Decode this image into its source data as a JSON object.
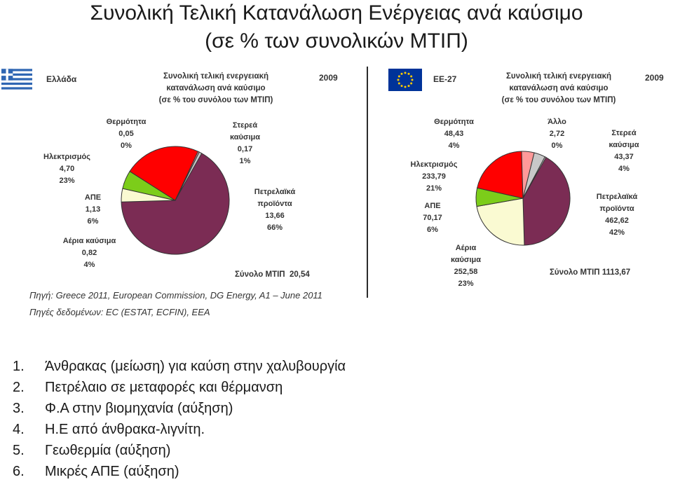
{
  "title": {
    "line1": "Συνολική Τελική Κατανάλωση Ενέργειας ανά καύσιμο",
    "line2": "(σε % των συνολικών ΜΤΙΠ)"
  },
  "left_panel": {
    "country": "Ελλάδα",
    "year": "2009",
    "chart_title": [
      "Συνολική τελική ενεργειακή",
      "κατανάλωση ανά καύσιμο",
      "(σε % του συνόλου των ΜΤΙΠ)"
    ],
    "total_label": "Σύνολο ΜΤΙΠ",
    "total_value": "20,54",
    "labels": {
      "heat": [
        "Θερμότητα",
        "0,05",
        "0%"
      ],
      "solid": [
        "Στερεά",
        "καύσιμα",
        "0,17",
        "1%"
      ],
      "electricity": [
        "Ηλεκτρισμός",
        "4,70",
        "23%"
      ],
      "res": [
        "ΑΠΕ",
        "1,13",
        "6%"
      ],
      "gas": [
        "Αέρια καύσιμα",
        "0,82",
        "4%"
      ],
      "oil": [
        "Πετρελαϊκά",
        "προϊόντα",
        "13,66",
        "66%"
      ]
    }
  },
  "right_panel": {
    "country": "ΕΕ-27",
    "year": "2009",
    "chart_title": [
      "Συνολική τελική ενεργειακή",
      "κατανάλωση ανά καύσιμο",
      "(σε % του συνόλου των ΜΤΙΠ)"
    ],
    "total_label": "Σύνολο ΜΤΙΠ",
    "total_value": "1113,67",
    "labels": {
      "heat": [
        "Θερμότητα",
        "48,43",
        "4%"
      ],
      "other": [
        "Άλλο",
        "2,72",
        "0%"
      ],
      "solid": [
        "Στερεά",
        "καύσιμα",
        "43,37",
        "4%"
      ],
      "electricity": [
        "Ηλεκτρισμός",
        "233,79",
        "21%"
      ],
      "res": [
        "ΑΠΕ",
        "70,17",
        "6%"
      ],
      "gas": [
        "Αέρια",
        "καύσιμα",
        "252,58",
        "23%"
      ],
      "oil": [
        "Πετρελαϊκά",
        "προϊόντα",
        "462,62",
        "42%"
      ]
    }
  },
  "source": {
    "line1": "Πηγή: Greece 2011, European Commission, DG Energy, A1 – June 2011",
    "line2": "Πηγές δεδομένων: EC (ESTAT, ECFIN), EEA"
  },
  "list": [
    {
      "num": "1.",
      "text": "Άνθρακας (μείωση) για καύση στην χαλυβουργία"
    },
    {
      "num": "2.",
      "text": "Πετρέλαιο σε μεταφορές και θέρμανση"
    },
    {
      "num": "3.",
      "text": "Φ.Α στην βιομηχανία (αύξηση)"
    },
    {
      "num": "4.",
      "text": "Η.Ε από άνθρακα-λιγνίτη."
    },
    {
      "num": "5.",
      "text": "Γεωθερμία (αύξηση)"
    },
    {
      "num": "6.",
      "text": "Μικρές ΑΠΕ (αύξηση)"
    }
  ],
  "chart_data": [
    {
      "type": "pie",
      "title": "Συνολική τελική ενεργειακή κατανάλωση ανά καύσιμο (σε % του συνόλου των ΜΤΙΠ)",
      "region": "Ελλάδα",
      "year": "2009",
      "unit": "ΜΤΙΠ",
      "total": 20.54,
      "slices": [
        {
          "key": "oil",
          "label": "Πετρελαϊκά προϊόντα",
          "value": 13.66,
          "percent": 66,
          "color": "#7b2c54"
        },
        {
          "key": "gas",
          "label": "Αέρια καύσιμα",
          "value": 0.82,
          "percent": 4,
          "color": "#fafad2"
        },
        {
          "key": "res",
          "label": "ΑΠΕ",
          "value": 1.13,
          "percent": 6,
          "color": "#7ccd1a"
        },
        {
          "key": "electricity",
          "label": "Ηλεκτρισμός",
          "value": 4.7,
          "percent": 23,
          "color": "#ff0000"
        },
        {
          "key": "heat",
          "label": "Θερμότητα",
          "value": 0.05,
          "percent": 0,
          "color": "#ff9999"
        },
        {
          "key": "solid",
          "label": "Στερεά καύσιμα",
          "value": 0.17,
          "percent": 1,
          "color": "#c8c8c8"
        }
      ]
    },
    {
      "type": "pie",
      "title": "Συνολική τελική ενεργειακή κατανάλωση ανά καύσιμο (σε % του συνόλου των ΜΤΙΠ)",
      "region": "ΕΕ-27",
      "year": "2009",
      "unit": "ΜΤΙΠ",
      "total": 1113.67,
      "slices": [
        {
          "key": "oil",
          "label": "Πετρελαϊκά προϊόντα",
          "value": 462.62,
          "percent": 42,
          "color": "#7b2c54"
        },
        {
          "key": "gas",
          "label": "Αέρια καύσιμα",
          "value": 252.58,
          "percent": 23,
          "color": "#fafad2"
        },
        {
          "key": "res",
          "label": "ΑΠΕ",
          "value": 70.17,
          "percent": 6,
          "color": "#7ccd1a"
        },
        {
          "key": "electricity",
          "label": "Ηλεκτρισμός",
          "value": 233.79,
          "percent": 21,
          "color": "#ff0000"
        },
        {
          "key": "heat",
          "label": "Θερμότητα",
          "value": 48.43,
          "percent": 4,
          "color": "#ff9999"
        },
        {
          "key": "solid",
          "label": "Στερεά καύσιμα",
          "value": 43.37,
          "percent": 4,
          "color": "#c8c8c8"
        },
        {
          "key": "other",
          "label": "Άλλο",
          "value": 2.72,
          "percent": 0,
          "color": "#e6e6e6"
        }
      ]
    }
  ]
}
